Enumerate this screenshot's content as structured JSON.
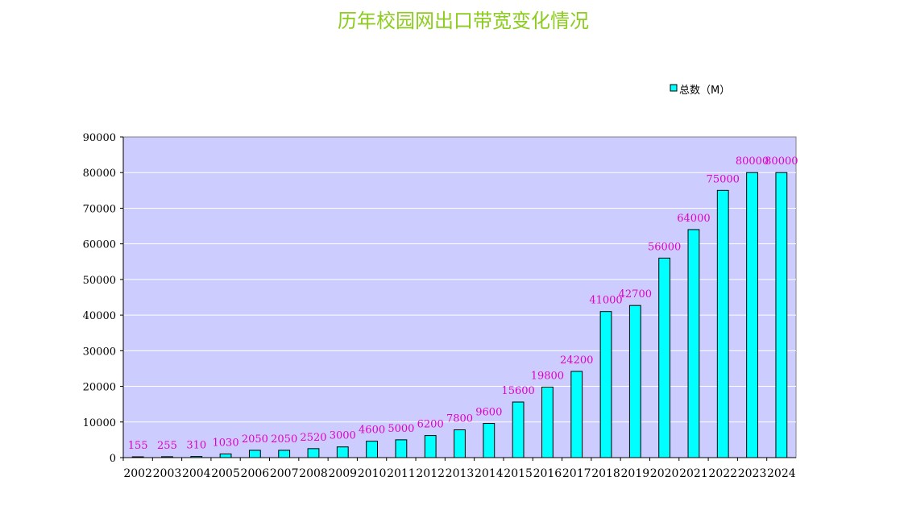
{
  "chart_data": {
    "type": "bar",
    "title": "历年校园网出口带宽变化情况",
    "xlabel": "",
    "ylabel": "",
    "categories": [
      "2002",
      "2003",
      "2004",
      "2005",
      "2006",
      "2007",
      "2008",
      "2009",
      "2010",
      "2011",
      "2012",
      "2013",
      "2014",
      "2015",
      "2016",
      "2017",
      "2018",
      "2019",
      "2020",
      "2021",
      "2022",
      "2023",
      "2024"
    ],
    "series": [
      {
        "name": "总数（M）",
        "values": [
          155,
          255,
          310,
          1030,
          2050,
          2050,
          2520,
          3000,
          4600,
          5000,
          6200,
          7800,
          9600,
          15600,
          19800,
          24200,
          41000,
          42700,
          56000,
          64000,
          75000,
          80000,
          80000
        ]
      }
    ],
    "ylim": [
      0,
      90000
    ],
    "yticks": [
      0,
      10000,
      20000,
      30000,
      40000,
      50000,
      60000,
      70000,
      80000,
      90000
    ],
    "grid": true,
    "legend_position": "top-right",
    "data_labels": true
  },
  "colors": {
    "title": "#8ccc1e",
    "bar_fill": "#00ffff",
    "plot_background": "#ccccff",
    "data_label": "#e000c8",
    "gridline": "#ffffff",
    "axis": "#000000"
  }
}
